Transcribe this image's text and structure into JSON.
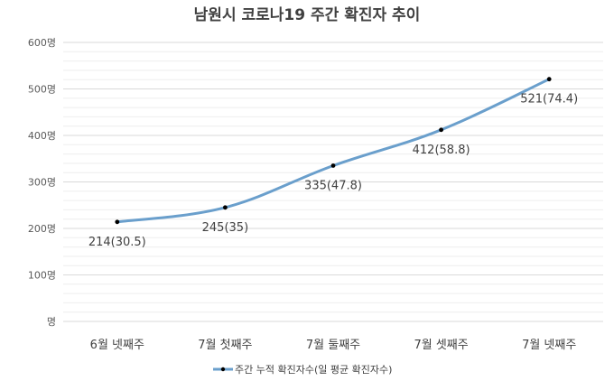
{
  "chart_data": {
    "type": "line",
    "title": "남원시 코로나19 주간 확진자 추이",
    "categories": [
      "6월 넷째주",
      "7월 첫째주",
      "7월 둘째주",
      "7월 셋째주",
      "7월 넷째주"
    ],
    "series": [
      {
        "name": "주간 누적 확진자수(일 평균 확진자수)",
        "values": [
          214,
          245,
          335,
          412,
          521
        ],
        "daily_average": [
          30.5,
          35,
          47.8,
          58.8,
          74.4
        ],
        "data_labels": [
          "214(30.5)",
          "245(35)",
          "335(47.8)",
          "412(58.8)",
          "521(74.4)"
        ],
        "color": "#6a9fcc",
        "marker_color": "#000000"
      }
    ],
    "ylim": [
      0,
      600
    ],
    "y_ticks": [
      0,
      100,
      200,
      300,
      400,
      500,
      600
    ],
    "y_tick_labels": [
      "명",
      "100명",
      "200명",
      "300명",
      "400명",
      "500명",
      "600명"
    ],
    "xlabel": "",
    "ylabel": "",
    "grid": true,
    "minor_grid": true,
    "smooth": true,
    "legend_position": "bottom",
    "grid_color": "#d9d9d9"
  }
}
